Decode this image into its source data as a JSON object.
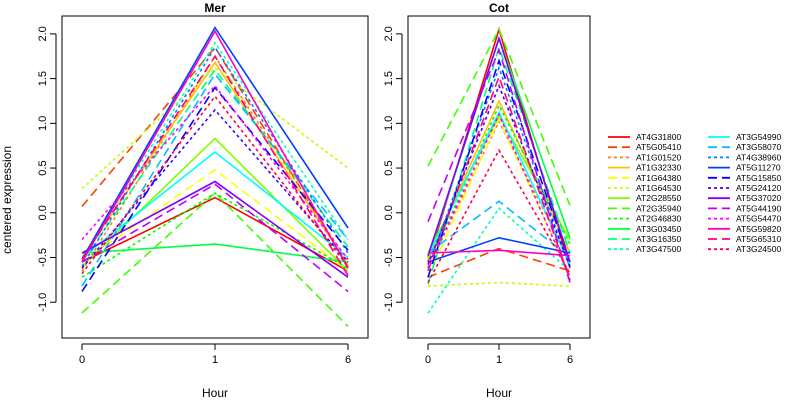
{
  "chart_data": {
    "type": "line",
    "ylabel": "centered expression",
    "xlabel": "Hour",
    "x": [
      0,
      1,
      6
    ],
    "x_tick_labels": [
      "0",
      "1",
      "6"
    ],
    "ylim": [
      -1.4,
      2.2
    ],
    "y_ticks": [
      -1.0,
      -0.5,
      0.0,
      0.5,
      1.0,
      1.5,
      2.0
    ],
    "y_tick_labels": [
      "-1.0",
      "-0.5",
      "0.0",
      "0.5",
      "1.0",
      "1.5",
      "2.0"
    ],
    "grid": false,
    "legend_position": "right",
    "series_style": [
      {
        "name": "AT4G31800",
        "color": "#ff0000",
        "dash": "solid"
      },
      {
        "name": "AT5G05410",
        "color": "#ff4000",
        "dash": "dashed"
      },
      {
        "name": "AT1G01520",
        "color": "#ff8000",
        "dash": "dotted"
      },
      {
        "name": "AT1G32330",
        "color": "#ffbf00",
        "dash": "solid"
      },
      {
        "name": "AT1G64380",
        "color": "#ffff00",
        "dash": "dashed"
      },
      {
        "name": "AT1G64530",
        "color": "#bfff00",
        "dash": "dotted"
      },
      {
        "name": "AT2G28550",
        "color": "#80ff00",
        "dash": "solid"
      },
      {
        "name": "AT2G35940",
        "color": "#40ff00",
        "dash": "dashed"
      },
      {
        "name": "AT2G46830",
        "color": "#00ff00",
        "dash": "dotted"
      },
      {
        "name": "AT3G03450",
        "color": "#00ff40",
        "dash": "solid"
      },
      {
        "name": "AT3G16350",
        "color": "#00ff80",
        "dash": "dashed"
      },
      {
        "name": "AT3G47500",
        "color": "#00ffbf",
        "dash": "dotted"
      },
      {
        "name": "AT3G54990",
        "color": "#00ffff",
        "dash": "solid"
      },
      {
        "name": "AT3G58070",
        "color": "#00bfff",
        "dash": "dashed"
      },
      {
        "name": "AT4G38960",
        "color": "#0080ff",
        "dash": "dotted"
      },
      {
        "name": "AT5G11270",
        "color": "#0040ff",
        "dash": "solid"
      },
      {
        "name": "AT5G15850",
        "color": "#0000ff",
        "dash": "dashed"
      },
      {
        "name": "AT5G24120",
        "color": "#4000ff",
        "dash": "dotted"
      },
      {
        "name": "AT5G37020",
        "color": "#8000ff",
        "dash": "solid"
      },
      {
        "name": "AT5G44190",
        "color": "#bf00ff",
        "dash": "dashed"
      },
      {
        "name": "AT5G54470",
        "color": "#ff00ff",
        "dash": "dotted"
      },
      {
        "name": "AT5G59820",
        "color": "#ff00bf",
        "dash": "solid"
      },
      {
        "name": "AT5G65310",
        "color": "#ff0080",
        "dash": "dashed"
      },
      {
        "name": "AT3G24500",
        "color": "#ff0040",
        "dash": "dotted"
      }
    ],
    "panels": [
      {
        "title": "Mer",
        "series": [
          {
            "name": "AT4G31800",
            "values": [
              -0.55,
              0.17,
              -0.65
            ]
          },
          {
            "name": "AT5G05410",
            "values": [
              0.07,
              1.85,
              -0.6
            ]
          },
          {
            "name": "AT1G01520",
            "values": [
              -0.65,
              1.75,
              -0.55
            ]
          },
          {
            "name": "AT1G32330",
            "values": [
              -0.5,
              1.68,
              -0.58
            ]
          },
          {
            "name": "AT1G64380",
            "values": [
              -0.55,
              0.48,
              -0.65
            ]
          },
          {
            "name": "AT1G64530",
            "values": [
              0.27,
              1.62,
              0.5
            ]
          },
          {
            "name": "AT2G28550",
            "values": [
              -0.6,
              0.83,
              -0.65
            ]
          },
          {
            "name": "AT2G35940",
            "values": [
              -1.12,
              0.22,
              -1.27
            ]
          },
          {
            "name": "AT2G46830",
            "values": [
              -0.72,
              0.22,
              -0.62
            ]
          },
          {
            "name": "AT3G03450",
            "values": [
              -0.45,
              -0.35,
              -0.55
            ]
          },
          {
            "name": "AT3G16350",
            "values": [
              -0.55,
              1.6,
              -0.38
            ]
          },
          {
            "name": "AT3G47500",
            "values": [
              -0.52,
              1.9,
              -0.3
            ]
          },
          {
            "name": "AT3G54990",
            "values": [
              -0.5,
              0.68,
              -0.5
            ]
          },
          {
            "name": "AT3G58070",
            "values": [
              -0.82,
              1.55,
              -0.3
            ]
          },
          {
            "name": "AT4G38960",
            "values": [
              -0.6,
              1.85,
              -0.45
            ]
          },
          {
            "name": "AT5G11270",
            "values": [
              -0.52,
              2.07,
              -0.17
            ]
          },
          {
            "name": "AT5G15850",
            "values": [
              -0.88,
              1.4,
              -0.42
            ]
          },
          {
            "name": "AT5G24120",
            "values": [
              -0.62,
              1.15,
              -0.55
            ]
          },
          {
            "name": "AT5G37020",
            "values": [
              -0.45,
              0.35,
              -0.72
            ]
          },
          {
            "name": "AT5G44190",
            "values": [
              -0.55,
              0.32,
              -0.88
            ]
          },
          {
            "name": "AT5G54470",
            "values": [
              -0.3,
              1.42,
              -0.52
            ]
          },
          {
            "name": "AT5G59820",
            "values": [
              -0.55,
              2.03,
              -0.62
            ]
          },
          {
            "name": "AT5G65310",
            "values": [
              -0.52,
              1.75,
              -0.7
            ]
          },
          {
            "name": "AT3G24500",
            "values": [
              -0.68,
              1.3,
              -0.6
            ]
          }
        ]
      },
      {
        "title": "Cot",
        "series": [
          {
            "name": "AT4G31800",
            "values": [
              -0.55,
              2.05,
              -0.62
            ]
          },
          {
            "name": "AT5G05410",
            "values": [
              -0.72,
              -0.4,
              -0.65
            ]
          },
          {
            "name": "AT1G01520",
            "values": [
              -0.62,
              1.02,
              -0.55
            ]
          },
          {
            "name": "AT1G32330",
            "values": [
              -0.52,
              1.25,
              -0.45
            ]
          },
          {
            "name": "AT1G64380",
            "values": [
              -0.72,
              1.05,
              -0.7
            ]
          },
          {
            "name": "AT1G64530",
            "values": [
              -0.82,
              -0.78,
              -0.82
            ]
          },
          {
            "name": "AT2G28550",
            "values": [
              -0.45,
              1.08,
              -0.3
            ]
          },
          {
            "name": "AT2G35940",
            "values": [
              0.52,
              2.05,
              0.08
            ]
          },
          {
            "name": "AT2G46830",
            "values": [
              -0.62,
              1.2,
              -0.35
            ]
          },
          {
            "name": "AT3G03450",
            "values": [
              -0.5,
              1.95,
              -0.28
            ]
          },
          {
            "name": "AT3G16350",
            "values": [
              -0.8,
              1.85,
              -0.45
            ]
          },
          {
            "name": "AT3G47500",
            "values": [
              -1.12,
              0.05,
              -0.65
            ]
          },
          {
            "name": "AT3G54990",
            "values": [
              -0.48,
              1.12,
              -0.58
            ]
          },
          {
            "name": "AT3G58070",
            "values": [
              -0.45,
              0.13,
              -0.5
            ]
          },
          {
            "name": "AT4G38960",
            "values": [
              -0.62,
              1.62,
              -0.62
            ]
          },
          {
            "name": "AT5G11270",
            "values": [
              -0.55,
              -0.28,
              -0.45
            ]
          },
          {
            "name": "AT5G15850",
            "values": [
              -0.72,
              1.7,
              -0.55
            ]
          },
          {
            "name": "AT5G24120",
            "values": [
              -0.58,
              1.42,
              -0.6
            ]
          },
          {
            "name": "AT5G37020",
            "values": [
              -0.48,
              1.95,
              -0.55
            ]
          },
          {
            "name": "AT5G44190",
            "values": [
              -0.1,
              1.82,
              -0.78
            ]
          },
          {
            "name": "AT5G54470",
            "values": [
              -0.62,
              1.1,
              -0.72
            ]
          },
          {
            "name": "AT5G59820",
            "values": [
              -0.45,
              -0.42,
              -0.48
            ]
          },
          {
            "name": "AT5G65310",
            "values": [
              -0.65,
              1.52,
              -0.75
            ]
          },
          {
            "name": "AT3G24500",
            "values": [
              -0.78,
              0.7,
              -0.68
            ]
          }
        ]
      }
    ]
  }
}
